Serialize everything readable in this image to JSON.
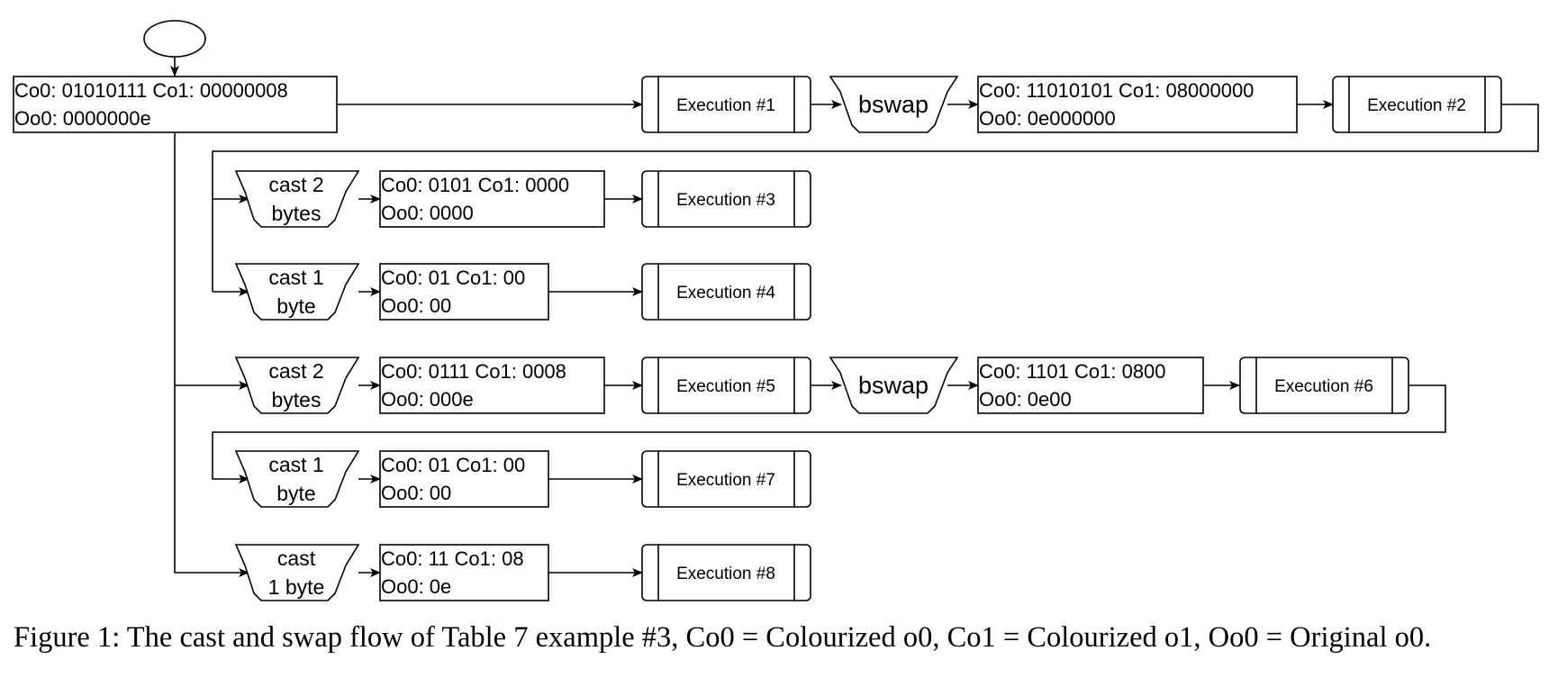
{
  "start_node": "",
  "state_boxes": {
    "s0": {
      "line1": "Co0: 01010111 Co1: 00000008",
      "line2": "Oo0: 0000000e"
    },
    "s1": {
      "line1": "Co0: 11010101 Co1: 08000000",
      "line2": "Oo0: 0e000000"
    },
    "s2": {
      "line1": "Co0: 0101 Co1: 0000",
      "line2": "Oo0: 0000"
    },
    "s3": {
      "line1": "Co0: 01 Co1: 00",
      "line2": "Oo0: 00"
    },
    "s4": {
      "line1": "Co0: 0111 Co1: 0008",
      "line2": "Oo0: 000e"
    },
    "s5": {
      "line1": "Co0: 1101 Co1: 0800",
      "line2": "Oo0: 0e00"
    },
    "s6": {
      "line1": "Co0: 01 Co1: 00",
      "line2": "Oo0: 00"
    },
    "s7": {
      "line1": "Co0: 11 Co1: 08",
      "line2": "Oo0: 0e"
    }
  },
  "executions": {
    "e1": "Execution #1",
    "e2": "Execution #2",
    "e3": "Execution #3",
    "e4": "Execution #4",
    "e5": "Execution #5",
    "e6": "Execution #6",
    "e7": "Execution #7",
    "e8": "Execution #8"
  },
  "operations": {
    "bswap1": {
      "line1": "bswap"
    },
    "cast2a": {
      "line1": "cast 2",
      "line2": "bytes"
    },
    "cast1a": {
      "line1": "cast 1",
      "line2": "byte"
    },
    "cast2b": {
      "line1": "cast 2",
      "line2": "bytes"
    },
    "bswap2": {
      "line1": "bswap"
    },
    "cast1b": {
      "line1": "cast 1",
      "line2": "byte"
    },
    "cast1c": {
      "line1": "cast",
      "line2": "1 byte"
    }
  },
  "caption": "Figure 1: The cast and swap flow of Table 7 example #3, Co0 = Colourized o0, Co1 = Colourized o1, Oo0 = Original o0."
}
